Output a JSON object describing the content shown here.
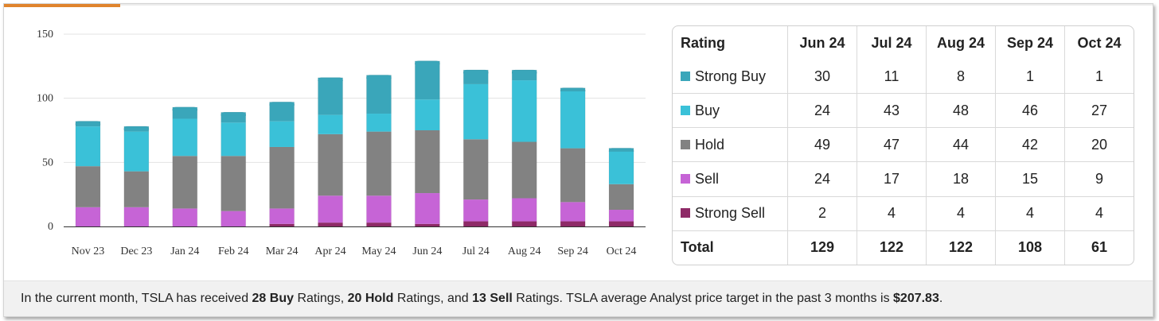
{
  "chart_data": {
    "type": "bar",
    "stacked": true,
    "categories": [
      "Nov 23",
      "Dec 23",
      "Jan 24",
      "Feb 24",
      "Mar 24",
      "Apr 24",
      "May 24",
      "Jun 24",
      "Jul 24",
      "Aug 24",
      "Sep 24",
      "Oct 24"
    ],
    "series": [
      {
        "name": "Strong Sell",
        "color": "#8e2a67",
        "values": [
          0,
          0,
          0,
          0,
          2,
          3,
          3,
          2,
          4,
          4,
          4,
          4
        ]
      },
      {
        "name": "Sell",
        "color": "#c664d6",
        "values": [
          15,
          15,
          14,
          12,
          12,
          21,
          21,
          24,
          17,
          18,
          15,
          9
        ]
      },
      {
        "name": "Hold",
        "color": "#828282",
        "values": [
          32,
          28,
          41,
          43,
          48,
          48,
          50,
          49,
          47,
          44,
          42,
          20
        ]
      },
      {
        "name": "Buy",
        "color": "#3ac1d8",
        "values": [
          31,
          31,
          29,
          26,
          20,
          15,
          14,
          24,
          43,
          48,
          46,
          27
        ]
      },
      {
        "name": "Strong Buy",
        "color": "#3aa6ba",
        "values": [
          4,
          4,
          9,
          8,
          15,
          29,
          30,
          30,
          11,
          8,
          1,
          1
        ]
      }
    ],
    "yticks": [
      0,
      50,
      100,
      150
    ],
    "ylim": [
      0,
      155
    ],
    "title": "",
    "xlabel": "",
    "ylabel": ""
  },
  "table": {
    "header": [
      "Rating",
      "Jun 24",
      "Jul 24",
      "Aug 24",
      "Sep 24",
      "Oct 24"
    ],
    "rows": [
      {
        "label": "Strong Buy",
        "color": "#3aa6ba",
        "values": [
          "30",
          "11",
          "8",
          "1",
          "1"
        ]
      },
      {
        "label": "Buy",
        "color": "#3ac1d8",
        "values": [
          "24",
          "43",
          "48",
          "46",
          "27"
        ]
      },
      {
        "label": "Hold",
        "color": "#828282",
        "values": [
          "49",
          "47",
          "44",
          "42",
          "20"
        ]
      },
      {
        "label": "Sell",
        "color": "#c664d6",
        "values": [
          "24",
          "17",
          "18",
          "15",
          "9"
        ]
      },
      {
        "label": "Strong Sell",
        "color": "#8e2a67",
        "values": [
          "2",
          "4",
          "4",
          "4",
          "4"
        ]
      }
    ],
    "total": {
      "label": "Total",
      "values": [
        "129",
        "122",
        "122",
        "108",
        "61"
      ]
    }
  },
  "footer": {
    "t1": "In the current month, TSLA has received ",
    "buy": "28 Buy",
    "t2": " Ratings, ",
    "hold": "20 Hold",
    "t3": " Ratings, and ",
    "sell": "13 Sell",
    "t4": " Ratings. TSLA average Analyst price target in the past 3 months is ",
    "price": "$207.83",
    "t5": "."
  }
}
